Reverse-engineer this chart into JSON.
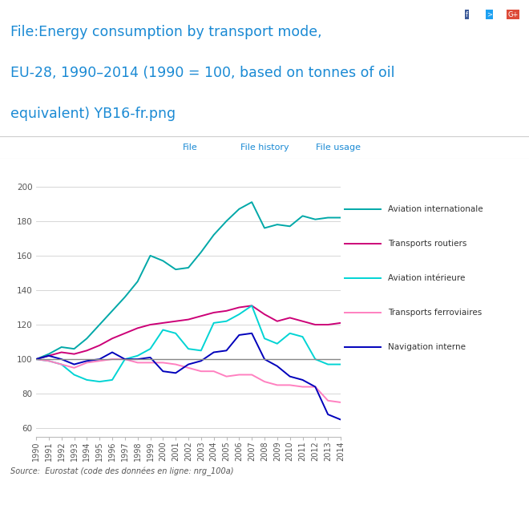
{
  "years": [
    1990,
    1991,
    1992,
    1993,
    1994,
    1995,
    1996,
    1997,
    1998,
    1999,
    2000,
    2001,
    2002,
    2003,
    2004,
    2005,
    2006,
    2007,
    2008,
    2009,
    2010,
    2011,
    2012,
    2013,
    2014
  ],
  "aviation_internationale": [
    100,
    103,
    107,
    106,
    112,
    120,
    128,
    136,
    145,
    160,
    157,
    152,
    153,
    162,
    172,
    180,
    187,
    191,
    176,
    178,
    177,
    183,
    181,
    182,
    182
  ],
  "transports_routiers": [
    100,
    102,
    104,
    103,
    105,
    108,
    112,
    115,
    118,
    120,
    121,
    122,
    123,
    125,
    127,
    128,
    130,
    131,
    126,
    122,
    124,
    122,
    120,
    120,
    121
  ],
  "aviation_interieure": [
    100,
    99,
    97,
    91,
    88,
    87,
    88,
    100,
    102,
    106,
    117,
    115,
    106,
    105,
    121,
    122,
    126,
    131,
    112,
    109,
    115,
    113,
    100,
    97,
    97
  ],
  "transports_ferroviaires": [
    100,
    99,
    97,
    95,
    98,
    99,
    100,
    100,
    98,
    98,
    98,
    97,
    95,
    93,
    93,
    90,
    91,
    91,
    87,
    85,
    85,
    84,
    84,
    76,
    75
  ],
  "navigation_interne": [
    100,
    102,
    100,
    97,
    99,
    100,
    104,
    100,
    100,
    101,
    93,
    92,
    97,
    99,
    104,
    105,
    114,
    115,
    100,
    96,
    90,
    88,
    84,
    68,
    65
  ],
  "colors": {
    "aviation_internationale": "#00a8a8",
    "transports_routiers": "#cc0077",
    "aviation_interieure": "#00d4d4",
    "transports_ferroviaires": "#ff80c0",
    "navigation_interne": "#0000bb"
  },
  "title_line1": "File:Energy consumption by transport mode,",
  "title_line2": "EU-28, 1990–2014 (1990 = 100, based on tonnes of oil",
  "title_line3": "equivalent) YB16-fr.png",
  "source_text": "Source:  Eurostat (code des données en ligne: nrg_100a)",
  "tab_labels": [
    "File",
    "File history",
    "File usage"
  ],
  "ylim": [
    55,
    205
  ],
  "yticks": [
    60,
    80,
    100,
    120,
    140,
    160,
    180,
    200
  ],
  "bg_color": "#ffffff",
  "grid_color": "#d0d0d0",
  "tab_bar_color": "#eeeeee",
  "legend_entries": [
    [
      "Aviation internationale",
      "aviation_internationale"
    ],
    [
      "Transports routiers",
      "transports_routiers"
    ],
    [
      "Aviation intérieure",
      "aviation_interieure"
    ],
    [
      "Transports ferroviaires",
      "transports_ferroviaires"
    ],
    [
      "Navigation interne",
      "navigation_interne"
    ]
  ]
}
